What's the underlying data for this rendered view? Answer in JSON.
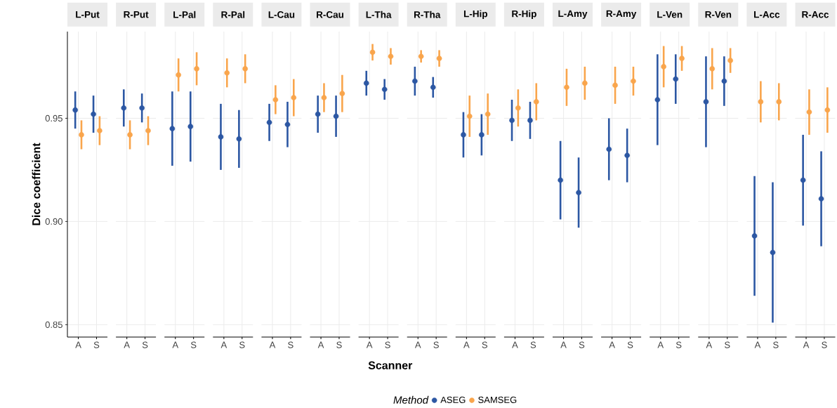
{
  "chart_data": [
    {
      "type": "scatter",
      "title": "L-Put",
      "categories": [
        "A",
        "S"
      ],
      "ylabel": "Dice coefficient",
      "ylim": [
        0.844,
        0.992
      ],
      "yticks": [
        {
          "value": 0.85,
          "label": "0.85"
        },
        {
          "value": 0.9,
          "label": "0.90"
        },
        {
          "value": 0.95,
          "label": "0.95"
        }
      ],
      "grid": true,
      "marker": "circle",
      "series": [
        {
          "color": "#2c57a3",
          "values": [
            0.954,
            0.952
          ],
          "errors": [
            [
              0.945,
              0.963
            ],
            [
              0.943,
              0.961
            ]
          ]
        },
        {
          "color": "#f9a54c",
          "values": [
            0.942,
            0.944
          ],
          "errors": [
            [
              0.935,
              0.949
            ],
            [
              0.937,
              0.951
            ]
          ]
        }
      ]
    },
    {
      "type": "scatter",
      "title": "R-Put",
      "categories": [
        "A",
        "S"
      ],
      "ylim": [
        0.844,
        0.992
      ],
      "yticks": [
        {
          "value": 0.85,
          "label": null
        },
        {
          "value": 0.9,
          "label": null
        },
        {
          "value": 0.95,
          "label": null
        }
      ],
      "grid": true,
      "marker": "circle",
      "tick_labels": "x",
      "series": [
        {
          "color": "#2c57a3",
          "values": [
            0.955,
            0.955
          ],
          "errors": [
            [
              0.946,
              0.964
            ],
            [
              0.948,
              0.962
            ]
          ]
        },
        {
          "color": "#f9a54c",
          "values": [
            0.942,
            0.944
          ],
          "errors": [
            [
              0.935,
              0.949
            ],
            [
              0.937,
              0.951
            ]
          ]
        }
      ]
    },
    {
      "type": "scatter",
      "title": "L-Pal",
      "categories": [
        "A",
        "S"
      ],
      "ylim": [
        0.844,
        0.992
      ],
      "yticks": [
        {
          "value": 0.85,
          "label": null
        },
        {
          "value": 0.9,
          "label": null
        },
        {
          "value": 0.95,
          "label": null
        }
      ],
      "grid": true,
      "marker": "circle",
      "tick_labels": "x",
      "series": [
        {
          "color": "#2c57a3",
          "values": [
            0.945,
            0.946
          ],
          "errors": [
            [
              0.927,
              0.963
            ],
            [
              0.929,
              0.963
            ]
          ]
        },
        {
          "color": "#f9a54c",
          "values": [
            0.971,
            0.974
          ],
          "errors": [
            [
              0.963,
              0.979
            ],
            [
              0.966,
              0.982
            ]
          ]
        }
      ]
    },
    {
      "type": "scatter",
      "title": "R-Pal",
      "categories": [
        "A",
        "S"
      ],
      "ylim": [
        0.844,
        0.992
      ],
      "yticks": [
        {
          "value": 0.85,
          "label": null
        },
        {
          "value": 0.9,
          "label": null
        },
        {
          "value": 0.95,
          "label": null
        }
      ],
      "grid": true,
      "marker": "circle",
      "tick_labels": "x",
      "series": [
        {
          "color": "#2c57a3",
          "values": [
            0.941,
            0.94
          ],
          "errors": [
            [
              0.925,
              0.957
            ],
            [
              0.926,
              0.954
            ]
          ]
        },
        {
          "color": "#f9a54c",
          "values": [
            0.972,
            0.974
          ],
          "errors": [
            [
              0.965,
              0.979
            ],
            [
              0.967,
              0.981
            ]
          ]
        }
      ]
    },
    {
      "type": "scatter",
      "title": "L-Cau",
      "categories": [
        "A",
        "S"
      ],
      "ylim": [
        0.844,
        0.992
      ],
      "yticks": [
        {
          "value": 0.85,
          "label": null
        },
        {
          "value": 0.9,
          "label": null
        },
        {
          "value": 0.95,
          "label": null
        }
      ],
      "grid": true,
      "marker": "circle",
      "tick_labels": "x",
      "series": [
        {
          "color": "#2c57a3",
          "values": [
            0.948,
            0.947
          ],
          "errors": [
            [
              0.939,
              0.957
            ],
            [
              0.936,
              0.958
            ]
          ]
        },
        {
          "color": "#f9a54c",
          "values": [
            0.959,
            0.96
          ],
          "errors": [
            [
              0.952,
              0.966
            ],
            [
              0.951,
              0.969
            ]
          ]
        }
      ]
    },
    {
      "type": "scatter",
      "title": "R-Cau",
      "categories": [
        "A",
        "S"
      ],
      "ylim": [
        0.844,
        0.992
      ],
      "yticks": [
        {
          "value": 0.85,
          "label": null
        },
        {
          "value": 0.9,
          "label": null
        },
        {
          "value": 0.95,
          "label": null
        }
      ],
      "grid": true,
      "marker": "circle",
      "tick_labels": "x",
      "series": [
        {
          "color": "#2c57a3",
          "values": [
            0.952,
            0.951
          ],
          "errors": [
            [
              0.943,
              0.961
            ],
            [
              0.941,
              0.961
            ]
          ]
        },
        {
          "color": "#f9a54c",
          "values": [
            0.96,
            0.962
          ],
          "errors": [
            [
              0.953,
              0.967
            ],
            [
              0.953,
              0.971
            ]
          ]
        }
      ]
    },
    {
      "type": "scatter",
      "title": "L-Tha",
      "categories": [
        "A",
        "S"
      ],
      "ylim": [
        0.844,
        0.992
      ],
      "yticks": [
        {
          "value": 0.85,
          "label": null
        },
        {
          "value": 0.9,
          "label": null
        },
        {
          "value": 0.95,
          "label": null
        }
      ],
      "grid": true,
      "marker": "circle",
      "tick_labels": "x",
      "series": [
        {
          "color": "#2c57a3",
          "values": [
            0.967,
            0.964
          ],
          "errors": [
            [
              0.961,
              0.973
            ],
            [
              0.959,
              0.969
            ]
          ]
        },
        {
          "color": "#f9a54c",
          "values": [
            0.982,
            0.98
          ],
          "errors": [
            [
              0.978,
              0.986
            ],
            [
              0.976,
              0.984
            ]
          ]
        }
      ]
    },
    {
      "type": "scatter",
      "title": "R-Tha",
      "categories": [
        "A",
        "S"
      ],
      "xlabel": "Scanner",
      "legend": "bottom",
      "legend_title": "Method",
      "ylim": [
        0.844,
        0.992
      ],
      "yticks": [
        {
          "value": 0.85,
          "label": null
        },
        {
          "value": 0.9,
          "label": null
        },
        {
          "value": 0.95,
          "label": null
        }
      ],
      "grid": true,
      "marker": "circle",
      "tick_labels": "x",
      "series": [
        {
          "name": "ASEG",
          "color": "#2c57a3",
          "values": [
            0.968,
            0.965
          ],
          "errors": [
            [
              0.961,
              0.975
            ],
            [
              0.96,
              0.97
            ]
          ]
        },
        {
          "name": "SAMSEG",
          "color": "#f9a54c",
          "values": [
            0.98,
            0.979
          ],
          "errors": [
            [
              0.977,
              0.983
            ],
            [
              0.975,
              0.983
            ]
          ]
        }
      ]
    },
    {
      "type": "scatter",
      "title": "L-Hip",
      "categories": [
        "A",
        "S"
      ],
      "ylim": [
        0.844,
        0.992
      ],
      "yticks": [
        {
          "value": 0.85,
          "label": null
        },
        {
          "value": 0.9,
          "label": null
        },
        {
          "value": 0.95,
          "label": null
        }
      ],
      "grid": true,
      "marker": "circle",
      "tick_labels": "x",
      "series": [
        {
          "color": "#2c57a3",
          "values": [
            0.942,
            0.942
          ],
          "errors": [
            [
              0.931,
              0.953
            ],
            [
              0.932,
              0.952
            ]
          ]
        },
        {
          "color": "#f9a54c",
          "values": [
            0.951,
            0.952
          ],
          "errors": [
            [
              0.941,
              0.961
            ],
            [
              0.942,
              0.962
            ]
          ]
        }
      ]
    },
    {
      "type": "scatter",
      "title": "R-Hip",
      "categories": [
        "A",
        "S"
      ],
      "ylim": [
        0.844,
        0.992
      ],
      "yticks": [
        {
          "value": 0.85,
          "label": null
        },
        {
          "value": 0.9,
          "label": null
        },
        {
          "value": 0.95,
          "label": null
        }
      ],
      "grid": true,
      "marker": "circle",
      "tick_labels": "x",
      "series": [
        {
          "color": "#2c57a3",
          "values": [
            0.949,
            0.949
          ],
          "errors": [
            [
              0.939,
              0.959
            ],
            [
              0.94,
              0.958
            ]
          ]
        },
        {
          "color": "#f9a54c",
          "values": [
            0.955,
            0.958
          ],
          "errors": [
            [
              0.946,
              0.964
            ],
            [
              0.949,
              0.967
            ]
          ]
        }
      ]
    },
    {
      "type": "scatter",
      "title": "L-Amy",
      "categories": [
        "A",
        "S"
      ],
      "ylim": [
        0.844,
        0.992
      ],
      "yticks": [
        {
          "value": 0.85,
          "label": null
        },
        {
          "value": 0.9,
          "label": null
        },
        {
          "value": 0.95,
          "label": null
        }
      ],
      "grid": true,
      "marker": "circle",
      "tick_labels": "x",
      "series": [
        {
          "color": "#2c57a3",
          "values": [
            0.92,
            0.914
          ],
          "errors": [
            [
              0.901,
              0.939
            ],
            [
              0.897,
              0.931
            ]
          ]
        },
        {
          "color": "#f9a54c",
          "values": [
            0.965,
            0.967
          ],
          "errors": [
            [
              0.956,
              0.974
            ],
            [
              0.959,
              0.975
            ]
          ]
        }
      ]
    },
    {
      "type": "scatter",
      "title": "R-Amy",
      "categories": [
        "A",
        "S"
      ],
      "ylim": [
        0.844,
        0.992
      ],
      "yticks": [
        {
          "value": 0.85,
          "label": null
        },
        {
          "value": 0.9,
          "label": null
        },
        {
          "value": 0.95,
          "label": null
        }
      ],
      "grid": true,
      "marker": "circle",
      "tick_labels": "x",
      "series": [
        {
          "color": "#2c57a3",
          "values": [
            0.935,
            0.932
          ],
          "errors": [
            [
              0.92,
              0.95
            ],
            [
              0.919,
              0.945
            ]
          ]
        },
        {
          "color": "#f9a54c",
          "values": [
            0.966,
            0.968
          ],
          "errors": [
            [
              0.957,
              0.975
            ],
            [
              0.961,
              0.975
            ]
          ]
        }
      ]
    },
    {
      "type": "scatter",
      "title": "L-Ven",
      "categories": [
        "A",
        "S"
      ],
      "ylim": [
        0.844,
        0.992
      ],
      "yticks": [
        {
          "value": 0.85,
          "label": null
        },
        {
          "value": 0.9,
          "label": null
        },
        {
          "value": 0.95,
          "label": null
        }
      ],
      "grid": true,
      "marker": "circle",
      "tick_labels": "x",
      "series": [
        {
          "color": "#2c57a3",
          "values": [
            0.959,
            0.969
          ],
          "errors": [
            [
              0.937,
              0.981
            ],
            [
              0.957,
              0.981
            ]
          ]
        },
        {
          "color": "#f9a54c",
          "values": [
            0.975,
            0.979
          ],
          "errors": [
            [
              0.965,
              0.985
            ],
            [
              0.973,
              0.985
            ]
          ]
        }
      ]
    },
    {
      "type": "scatter",
      "title": "R-Ven",
      "categories": [
        "A",
        "S"
      ],
      "ylim": [
        0.844,
        0.992
      ],
      "yticks": [
        {
          "value": 0.85,
          "label": null
        },
        {
          "value": 0.9,
          "label": null
        },
        {
          "value": 0.95,
          "label": null
        }
      ],
      "grid": true,
      "marker": "circle",
      "tick_labels": "x",
      "series": [
        {
          "color": "#2c57a3",
          "values": [
            0.958,
            0.968
          ],
          "errors": [
            [
              0.936,
              0.98
            ],
            [
              0.956,
              0.98
            ]
          ]
        },
        {
          "color": "#f9a54c",
          "values": [
            0.974,
            0.978
          ],
          "errors": [
            [
              0.964,
              0.984
            ],
            [
              0.972,
              0.984
            ]
          ]
        }
      ]
    },
    {
      "type": "scatter",
      "title": "L-Acc",
      "categories": [
        "A",
        "S"
      ],
      "ylim": [
        0.844,
        0.992
      ],
      "yticks": [
        {
          "value": 0.85,
          "label": null
        },
        {
          "value": 0.9,
          "label": null
        },
        {
          "value": 0.95,
          "label": null
        }
      ],
      "grid": true,
      "marker": "circle",
      "tick_labels": "x",
      "series": [
        {
          "color": "#2c57a3",
          "values": [
            0.893,
            0.885
          ],
          "errors": [
            [
              0.864,
              0.922
            ],
            [
              0.851,
              0.919
            ]
          ]
        },
        {
          "color": "#f9a54c",
          "values": [
            0.958,
            0.958
          ],
          "errors": [
            [
              0.948,
              0.968
            ],
            [
              0.949,
              0.967
            ]
          ]
        }
      ]
    },
    {
      "type": "scatter",
      "title": "R-Acc",
      "categories": [
        "A",
        "S"
      ],
      "ylim": [
        0.844,
        0.992
      ],
      "yticks": [
        {
          "value": 0.85,
          "label": null
        },
        {
          "value": 0.9,
          "label": null
        },
        {
          "value": 0.95,
          "label": null
        }
      ],
      "grid": true,
      "marker": "circle",
      "tick_labels": "x",
      "series": [
        {
          "color": "#2c57a3",
          "values": [
            0.92,
            0.911
          ],
          "errors": [
            [
              0.898,
              0.942
            ],
            [
              0.888,
              0.934
            ]
          ]
        },
        {
          "color": "#f9a54c",
          "values": [
            0.953,
            0.954
          ],
          "errors": [
            [
              0.942,
              0.964
            ],
            [
              0.943,
              0.965
            ]
          ]
        }
      ]
    }
  ]
}
